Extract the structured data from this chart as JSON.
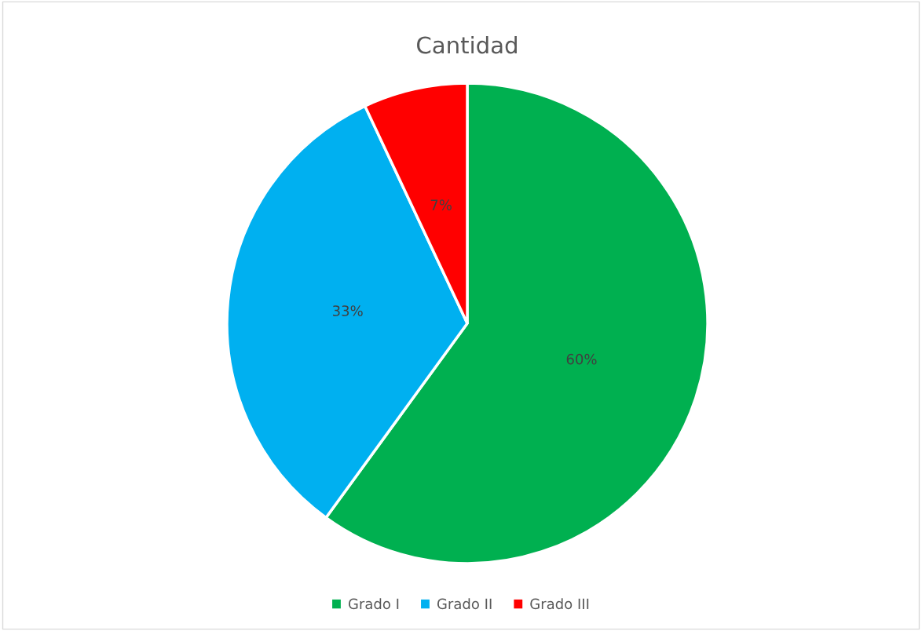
{
  "chart_data": {
    "type": "pie",
    "title": "Cantidad",
    "categories": [
      "Grado I",
      "Grado II",
      "Grado III"
    ],
    "values": [
      60,
      33,
      7
    ],
    "value_labels": [
      "60%",
      "33%",
      "7%"
    ],
    "colors": [
      "#00b050",
      "#00b0f0",
      "#ff0000"
    ],
    "legend": "bottom"
  }
}
